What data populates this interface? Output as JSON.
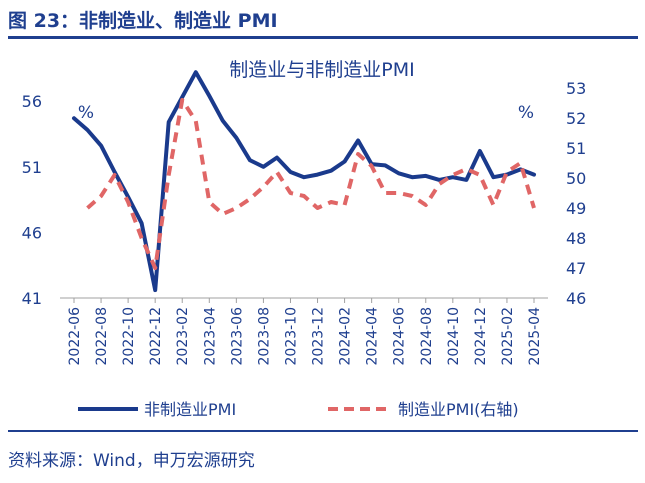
{
  "figure_title": "图 23：非制造业、制造业 PMI",
  "source": "资料来源：Wind，申万宏源研究",
  "colors": {
    "brand": "#1f3f8f",
    "series_left": "#1a3a8c",
    "series_right": "#e06666"
  },
  "chart_data": {
    "type": "line",
    "title": "制造业与非制造业PMI",
    "left_axis": {
      "unit": "%",
      "ylim": [
        41,
        57
      ],
      "ticks": [
        41,
        46,
        51,
        56
      ]
    },
    "right_axis": {
      "unit": "%",
      "ylim": [
        46,
        53
      ],
      "ticks": [
        46,
        47,
        48,
        49,
        50,
        51,
        52,
        53
      ]
    },
    "x": [
      "2022-06",
      "2022-07",
      "2022-08",
      "2022-09",
      "2022-10",
      "2022-11",
      "2022-12",
      "2023-01",
      "2023-02",
      "2023-03",
      "2023-04",
      "2023-05",
      "2023-06",
      "2023-07",
      "2023-08",
      "2023-09",
      "2023-10",
      "2023-11",
      "2023-12",
      "2024-01",
      "2024-02",
      "2024-03",
      "2024-04",
      "2024-05",
      "2024-06",
      "2024-07",
      "2024-08",
      "2024-09",
      "2024-10",
      "2024-11",
      "2024-12",
      "2025-01",
      "2025-02",
      "2025-03",
      "2025-04"
    ],
    "x_tick_labels": [
      "2022-06",
      "2022-08",
      "2022-10",
      "2022-12",
      "2023-02",
      "2023-04",
      "2023-06",
      "2023-08",
      "2023-10",
      "2023-12",
      "2024-02",
      "2024-04",
      "2024-06",
      "2024-08",
      "2024-10",
      "2024-12",
      "2025-02",
      "2025-04"
    ],
    "grid": false,
    "legend_position": "bottom",
    "series": [
      {
        "name": "非制造业PMI",
        "axis": "left",
        "style": "solid",
        "values": [
          54.7,
          53.8,
          52.6,
          50.6,
          48.7,
          46.7,
          41.6,
          54.4,
          56.3,
          58.2,
          56.4,
          54.5,
          53.2,
          51.5,
          51.0,
          51.7,
          50.6,
          50.2,
          50.4,
          50.7,
          51.4,
          53.0,
          51.2,
          51.1,
          50.5,
          50.2,
          50.3,
          50.0,
          50.2,
          50.0,
          52.2,
          50.2,
          50.4,
          50.8,
          50.4
        ]
      },
      {
        "name": "制造业PMI(右轴)",
        "axis": "right",
        "style": "dashed",
        "values": [
          null,
          49.0,
          49.4,
          50.1,
          49.2,
          48.0,
          47.0,
          50.1,
          52.6,
          51.9,
          49.2,
          48.8,
          49.0,
          49.3,
          49.7,
          50.2,
          49.5,
          49.4,
          49.0,
          49.2,
          49.1,
          50.8,
          50.4,
          49.5,
          49.5,
          49.4,
          49.1,
          49.8,
          50.1,
          50.3,
          50.1,
          49.1,
          50.2,
          50.5,
          49.0
        ]
      }
    ]
  }
}
